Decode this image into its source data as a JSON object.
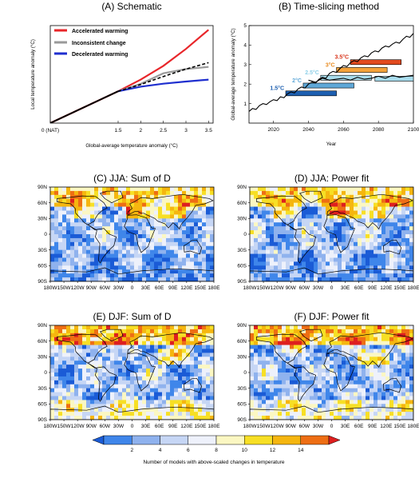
{
  "colors": {
    "accelerated": "#e8262a",
    "inconsistent": "#9a9a9a",
    "decelerated": "#1f2fcf",
    "colorbar": [
      "#1a5bd6",
      "#3f86ea",
      "#8fb2ee",
      "#c6d6f5",
      "#eef1fb",
      "#fbf7c2",
      "#f7df25",
      "#f5b60f",
      "#ee6e14",
      "#de1f1f"
    ]
  },
  "chart_data": [
    {
      "type": "line",
      "title": "(A) Schematic",
      "xlabel": "Global-average temperature anomaly (°C)",
      "ylabel": "Local temperature anomaly (°C)",
      "x_ticks": [
        "0 (NAT)",
        "1.5",
        "2",
        "2.5",
        "3",
        "3.5"
      ],
      "series": [
        {
          "name": "Accelerated warming",
          "x": [
            0,
            1.5,
            2,
            2.5,
            3,
            3.5
          ],
          "y": [
            0,
            1.5,
            2.05,
            2.7,
            3.5,
            4.4
          ]
        },
        {
          "name": "Inconsistent change",
          "x": [
            1.5,
            2,
            2.5,
            3,
            3.5
          ],
          "y": [
            1.5,
            1.85,
            2.35,
            2.55,
            2.65
          ]
        },
        {
          "name": "Decelerated warming",
          "x": [
            1.5,
            2,
            2.5,
            3,
            3.5
          ],
          "y": [
            1.5,
            1.72,
            1.86,
            1.96,
            2.05
          ]
        }
      ],
      "black_line": {
        "x": [
          0,
          1.5
        ],
        "y": [
          0,
          1.5
        ]
      },
      "dashed_line": {
        "x": [
          1.5,
          2,
          2.5,
          3,
          3.5
        ],
        "y": [
          1.5,
          1.82,
          2.2,
          2.55,
          2.85
        ]
      },
      "xlim": [
        0,
        3.6
      ],
      "ylim": [
        0,
        4.6
      ]
    },
    {
      "type": "line",
      "title": "(B) Time-slicing method",
      "xlabel": "Year",
      "ylabel": "Global-average temperature anomaly (°C)",
      "x_ticks": [
        2020,
        2040,
        2060,
        2080,
        2100
      ],
      "y_ticks": [
        1,
        2,
        3,
        4,
        5
      ],
      "xlim": [
        2006,
        2100
      ],
      "ylim": [
        0,
        5
      ],
      "series": [
        {
          "name": "",
          "x": [
            2006,
            2008,
            2010,
            2012,
            2014,
            2016,
            2018,
            2020,
            2022,
            2024,
            2026,
            2028,
            2030,
            2032,
            2034,
            2036,
            2038,
            2040,
            2042,
            2044,
            2046,
            2048,
            2050,
            2052,
            2054,
            2056,
            2058,
            2060,
            2062,
            2064,
            2066,
            2068,
            2070,
            2072,
            2074,
            2076,
            2078,
            2080,
            2082,
            2084,
            2086,
            2088,
            2090,
            2092,
            2094,
            2096,
            2098,
            2100
          ],
          "y": [
            0.6,
            0.75,
            0.7,
            0.9,
            1.0,
            0.95,
            1.1,
            1.2,
            1.15,
            1.35,
            1.3,
            1.5,
            1.6,
            1.55,
            1.75,
            1.85,
            1.8,
            2.0,
            2.1,
            2.05,
            2.25,
            2.35,
            2.3,
            2.55,
            2.65,
            2.6,
            2.8,
            2.95,
            2.9,
            3.1,
            3.2,
            3.15,
            3.35,
            3.45,
            3.4,
            3.6,
            3.7,
            3.65,
            3.85,
            3.95,
            3.9,
            4.05,
            4.15,
            4.1,
            4.3,
            4.45,
            4.4,
            4.6
          ]
        },
        {
          "name": "",
          "x": [
            2040,
            2044,
            2048,
            2052,
            2056,
            2060,
            2064,
            2068,
            2072,
            2076,
            2080,
            2084,
            2088,
            2092,
            2096,
            2100
          ],
          "y": [
            2.2,
            2.1,
            2.3,
            2.2,
            2.25,
            2.3,
            2.2,
            2.35,
            2.25,
            2.3,
            2.4,
            2.3,
            2.45,
            2.35,
            2.4,
            2.45
          ]
        }
      ],
      "windows": [
        {
          "label": "1.5°C",
          "x0": 2027,
          "x1": 2056,
          "y0": 1.4,
          "y1": 1.65,
          "color": "#1d5fb0"
        },
        {
          "label": "2°C",
          "x0": 2037,
          "x1": 2066,
          "y0": 1.8,
          "y1": 2.05,
          "color": "#5fa8d8"
        },
        {
          "label": "2.5°C",
          "x0": 2047,
          "x1": 2076,
          "y0": 2.2,
          "y1": 2.45,
          "color": "#a8dcec"
        },
        {
          "label": "3°C",
          "x0": 2056,
          "x1": 2085,
          "y0": 2.6,
          "y1": 2.85,
          "color": "#f4a23a"
        },
        {
          "label": "3.5°C",
          "x0": 2064,
          "x1": 2093,
          "y0": 3.0,
          "y1": 3.25,
          "color": "#e24a1e"
        },
        {
          "label": "",
          "x0": 2078,
          "x1": 2100,
          "y0": 2.15,
          "y1": 2.4,
          "color": "#a8dcec"
        }
      ]
    },
    {
      "type": "heatmap",
      "title": "(C) JJA: Sum of D",
      "season": "JJA",
      "seed": 11
    },
    {
      "type": "heatmap",
      "title": "(D) JJA: Power fit",
      "season": "JJA",
      "seed": 23
    },
    {
      "type": "heatmap",
      "title": "(E) DJF: Sum of D",
      "season": "DJF",
      "seed": 37
    },
    {
      "type": "heatmap",
      "title": "(F) DJF: Power fit",
      "season": "DJF",
      "seed": 53
    }
  ],
  "maps": {
    "lat_ticks": [
      "90N",
      "60N",
      "30N",
      "0",
      "30S",
      "60S",
      "90S"
    ],
    "lon_ticks": [
      "180W",
      "150W",
      "120W",
      "90W",
      "60W",
      "30W",
      "0",
      "30E",
      "60E",
      "90E",
      "120E",
      "150E",
      "180E"
    ]
  },
  "colorbar": {
    "ticks": [
      "2",
      "4",
      "6",
      "8",
      "10",
      "12",
      "14"
    ],
    "label": "Number of models with above-scaled changes in temperature"
  }
}
